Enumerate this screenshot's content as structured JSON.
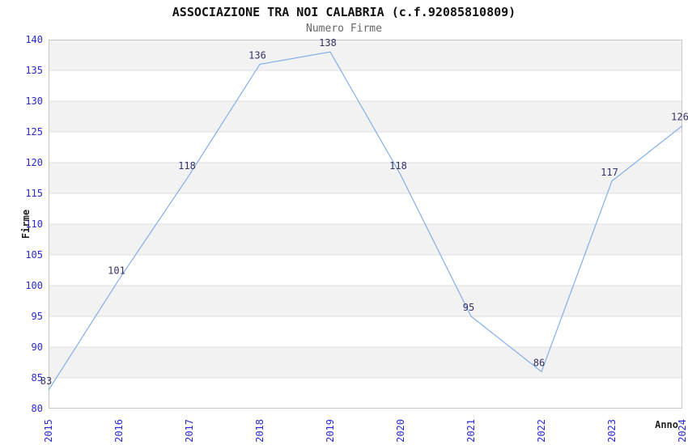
{
  "header": {
    "title": "ASSOCIAZIONE TRA NOI CALABRIA (c.f.92085810809)",
    "subtitle": "Numero Firme"
  },
  "chart_data": {
    "type": "line",
    "title": "ASSOCIAZIONE TRA NOI CALABRIA (c.f.92085810809)",
    "subtitle": "Numero Firme",
    "xlabel": "Anno",
    "ylabel": "Firme",
    "categories": [
      "2015",
      "2016",
      "2017",
      "2018",
      "2019",
      "2020",
      "2021",
      "2022",
      "2023",
      "2024"
    ],
    "series": [
      {
        "name": "Numero Firme",
        "values": [
          83,
          101,
          118,
          136,
          138,
          118,
          95,
          86,
          117,
          126
        ]
      }
    ],
    "ylim": [
      80,
      140
    ],
    "ytick_step": 5,
    "grid": true,
    "banded_background": true,
    "show_point_labels": true,
    "legend_position": "none",
    "markers": "none",
    "colors": {
      "line": "#84afe8",
      "tick_labels": "#2a2ad0",
      "point_labels": "#333366",
      "band_fill": "#f2f2f2",
      "grid_line": "#e0e0e0",
      "plot_border": "#c8c8c8",
      "title": "#111111",
      "subtitle": "#666666",
      "axis_titles": "#222222",
      "background": "#ffffff"
    }
  }
}
